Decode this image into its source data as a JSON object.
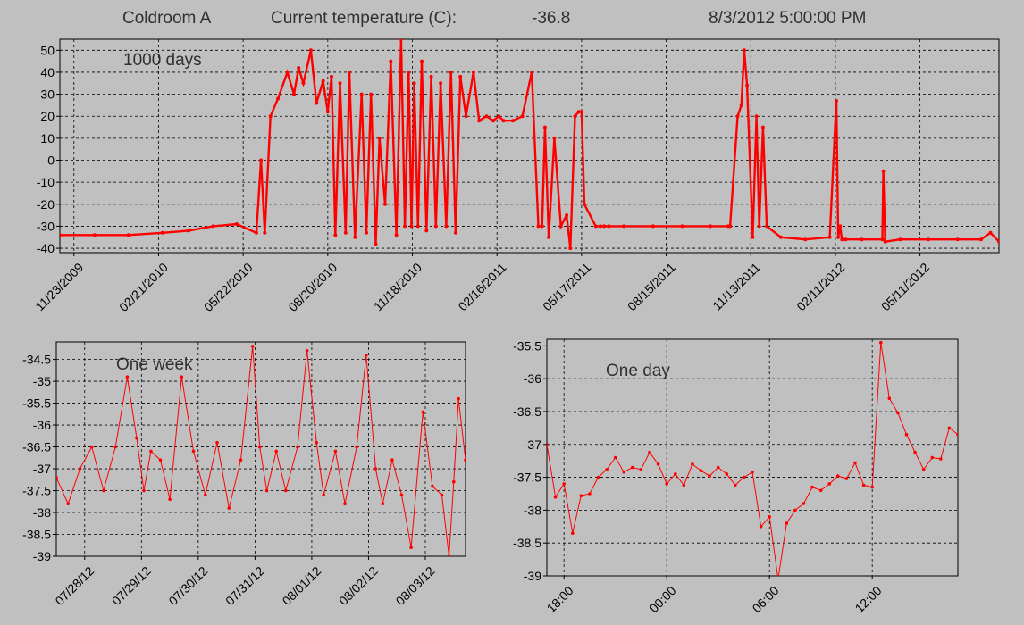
{
  "header": {
    "room": "Coldroom A",
    "current_label": "Current temperature (C):",
    "current_value": "-36.8",
    "timestamp": "8/3/2012 5:00:00 PM"
  },
  "colors": {
    "background": "#c0c0c0",
    "series": "#ff0000",
    "grid": "#000000"
  },
  "chart_data": [
    {
      "type": "line",
      "title": "1000 days",
      "xlabel": "",
      "ylabel": "",
      "x_axis_type": "date",
      "x_range": [
        "2009-11-08",
        "2012-08-03"
      ],
      "ylim": [
        -42,
        55
      ],
      "yticks": [
        -40,
        -30,
        -20,
        -10,
        0,
        10,
        20,
        30,
        40,
        50
      ],
      "xtick_labels": [
        "11/23/2009",
        "02/21/2010",
        "05/22/2010",
        "08/20/2010",
        "11/18/2010",
        "02/16/2011",
        "05/17/2011",
        "08/15/2011",
        "11/13/2011",
        "02/11/2012",
        "05/11/2012"
      ],
      "xtick_dates": [
        "2009-11-23",
        "2010-02-21",
        "2010-05-22",
        "2010-08-20",
        "2010-11-18",
        "2011-02-16",
        "2011-05-17",
        "2011-08-15",
        "2011-11-13",
        "2012-02-11",
        "2012-05-11"
      ],
      "grid": true,
      "series": [
        {
          "x": [
            "2009-11-08",
            "2009-12-15",
            "2010-01-20",
            "2010-02-25",
            "2010-03-25",
            "2010-04-20",
            "2010-05-15",
            "2010-06-05",
            "2010-06-10",
            "2010-06-14",
            "2010-06-20",
            "2010-06-28",
            "2010-07-08",
            "2010-07-15",
            "2010-07-20",
            "2010-07-25",
            "2010-08-02",
            "2010-08-08",
            "2010-08-15",
            "2010-08-20",
            "2010-08-24",
            "2010-08-28",
            "2010-09-02",
            "2010-09-08",
            "2010-09-12",
            "2010-09-18",
            "2010-09-25",
            "2010-09-30",
            "2010-10-05",
            "2010-10-10",
            "2010-10-14",
            "2010-10-20",
            "2010-10-26",
            "2010-11-01",
            "2010-11-06",
            "2010-11-10",
            "2010-11-14",
            "2010-11-17",
            "2010-11-20",
            "2010-11-24",
            "2010-11-28",
            "2010-12-03",
            "2010-12-08",
            "2010-12-13",
            "2010-12-18",
            "2010-12-24",
            "2010-12-29",
            "2011-01-03",
            "2011-01-08",
            "2011-01-14",
            "2011-01-22",
            "2011-01-28",
            "2011-02-05",
            "2011-02-12",
            "2011-02-18",
            "2011-02-23",
            "2011-03-05",
            "2011-03-15",
            "2011-03-25",
            "2011-04-01",
            "2011-04-05",
            "2011-04-08",
            "2011-04-12",
            "2011-04-18",
            "2011-04-25",
            "2011-05-01",
            "2011-05-05",
            "2011-05-10",
            "2011-05-14",
            "2011-05-17",
            "2011-05-20",
            "2011-06-01",
            "2011-06-06",
            "2011-06-10",
            "2011-06-15",
            "2011-07-01",
            "2011-08-01",
            "2011-09-01",
            "2011-10-01",
            "2011-10-20",
            "2011-10-22",
            "2011-10-30",
            "2011-11-03",
            "2011-11-06",
            "2011-11-09",
            "2011-11-15",
            "2011-11-19",
            "2011-11-22",
            "2011-11-26",
            "2011-11-30",
            "2011-12-15",
            "2012-01-10",
            "2012-02-05",
            "2012-02-12",
            "2012-02-14",
            "2012-02-16",
            "2012-02-18",
            "2012-02-22",
            "2012-03-10",
            "2012-04-01",
            "2012-04-02",
            "2012-04-04",
            "2012-04-20",
            "2012-05-20",
            "2012-06-20",
            "2012-07-15",
            "2012-07-25",
            "2012-08-03"
          ],
          "y": [
            -34,
            -34,
            -34,
            -33,
            -32,
            -30,
            -29,
            -33,
            0,
            -33,
            20,
            28,
            40,
            30,
            42,
            35,
            50,
            26,
            36,
            22,
            38,
            -34,
            35,
            -33,
            40,
            -35,
            30,
            -33,
            30,
            -38,
            10,
            -20,
            45,
            -34,
            55,
            -30,
            40,
            -30,
            35,
            -30,
            45,
            -32,
            38,
            -30,
            35,
            -30,
            40,
            -33,
            38,
            20,
            40,
            18,
            20,
            18,
            20,
            18,
            18,
            20,
            40,
            -30,
            -30,
            15,
            -35,
            10,
            -30,
            -25,
            -40,
            20,
            22,
            22,
            -20,
            -30,
            -30,
            -30,
            -30,
            -30,
            -30,
            -30,
            -30,
            -30,
            -30,
            20,
            25,
            50,
            34,
            -35,
            20,
            -30,
            15,
            -30,
            -35,
            -36,
            -35,
            27,
            -35,
            -30,
            -36,
            -36,
            -36,
            -36,
            -5,
            -37,
            -36,
            -36,
            -36,
            -36,
            -33,
            -37
          ]
        }
      ]
    },
    {
      "type": "line",
      "title": "One week",
      "xlabel": "",
      "ylabel": "",
      "x_axis_type": "date",
      "x_range": [
        "2012-07-27T12:00",
        "2012-08-03T17:00"
      ],
      "ylim": [
        -39,
        -34.1
      ],
      "yticks": [
        -39,
        -38.5,
        -38,
        -37.5,
        -37,
        -36.5,
        -36,
        -35.5,
        -35,
        -34.5
      ],
      "ytick_labels": [
        "-39",
        "-38.5",
        "-38",
        "-37.5",
        "-37",
        "-36.5",
        "-36",
        "-35.5",
        "-35",
        "-34.5"
      ],
      "xtick_labels": [
        "07/28/12",
        "07/29/12",
        "07/30/12",
        "07/31/12",
        "08/01/12",
        "08/02/12",
        "08/03/12"
      ],
      "xtick_dates": [
        "2012-07-28T00:00",
        "2012-07-29T00:00",
        "2012-07-30T00:00",
        "2012-07-31T00:00",
        "2012-08-01T00:00",
        "2012-08-02T00:00",
        "2012-08-03T00:00"
      ],
      "grid": true,
      "series": [
        {
          "x": [
            "2012-07-27T12:00",
            "2012-07-27T17:00",
            "2012-07-27T22:00",
            "2012-07-28T03:00",
            "2012-07-28T08:00",
            "2012-07-28T13:00",
            "2012-07-28T18:00",
            "2012-07-28T22:00",
            "2012-07-29T01:00",
            "2012-07-29T04:00",
            "2012-07-29T08:00",
            "2012-07-29T12:00",
            "2012-07-29T17:00",
            "2012-07-29T22:00",
            "2012-07-30T03:00",
            "2012-07-30T08:00",
            "2012-07-30T13:00",
            "2012-07-30T18:00",
            "2012-07-30T23:00",
            "2012-07-31T02:00",
            "2012-07-31T05:00",
            "2012-07-31T09:00",
            "2012-07-31T13:00",
            "2012-07-31T18:00",
            "2012-07-31T22:00",
            "2012-08-01T02:00",
            "2012-08-01T05:00",
            "2012-08-01T10:00",
            "2012-08-01T14:00",
            "2012-08-01T19:00",
            "2012-08-01T23:00",
            "2012-08-02T03:00",
            "2012-08-02T06:00",
            "2012-08-02T10:00",
            "2012-08-02T14:00",
            "2012-08-02T18:00",
            "2012-08-02T23:00",
            "2012-08-03T03:00",
            "2012-08-03T07:00",
            "2012-08-03T10:00",
            "2012-08-03T12:00",
            "2012-08-03T14:00",
            "2012-08-03T17:00"
          ],
          "y": [
            -37.2,
            -37.8,
            -37,
            -36.5,
            -37.5,
            -36.5,
            -34.9,
            -36.3,
            -37.5,
            -36.6,
            -36.8,
            -37.7,
            -34.9,
            -36.6,
            -37.6,
            -36.4,
            -37.9,
            -36.8,
            -34.2,
            -36.5,
            -37.5,
            -36.6,
            -37.5,
            -36.5,
            -34.3,
            -36.4,
            -37.6,
            -36.6,
            -37.8,
            -36.5,
            -34.4,
            -37,
            -37.8,
            -36.8,
            -37.6,
            -38.8,
            -35.7,
            -37.4,
            -37.6,
            -39,
            -37.3,
            -35.4,
            -36.8
          ]
        }
      ]
    },
    {
      "type": "line",
      "title": "One day",
      "xlabel": "",
      "ylabel": "",
      "x_axis_type": "time",
      "x_range": [
        "2012-08-02T17:00",
        "2012-08-03T17:00"
      ],
      "ylim": [
        -39,
        -35.4
      ],
      "yticks": [
        -39,
        -38.5,
        -38,
        -37.5,
        -37,
        -36.5,
        -36,
        -35.5
      ],
      "ytick_labels": [
        "-39",
        "-38.5",
        "-38",
        "-37.5",
        "-37",
        "-36.5",
        "-36",
        "-35.5"
      ],
      "xtick_labels": [
        "18:00",
        "00:00",
        "06:00",
        "12:00"
      ],
      "xtick_dates": [
        "2012-08-02T18:00",
        "2012-08-03T00:00",
        "2012-08-03T06:00",
        "2012-08-03T12:00"
      ],
      "grid": true,
      "series": [
        {
          "x": [
            "2012-08-02T17:00",
            "2012-08-02T17:30",
            "2012-08-02T18:00",
            "2012-08-02T18:30",
            "2012-08-02T19:00",
            "2012-08-02T19:30",
            "2012-08-02T20:00",
            "2012-08-02T20:30",
            "2012-08-02T21:00",
            "2012-08-02T21:30",
            "2012-08-02T22:00",
            "2012-08-02T22:30",
            "2012-08-02T23:00",
            "2012-08-02T23:30",
            "2012-08-03T00:00",
            "2012-08-03T00:30",
            "2012-08-03T01:00",
            "2012-08-03T01:30",
            "2012-08-03T02:00",
            "2012-08-03T02:30",
            "2012-08-03T03:00",
            "2012-08-03T03:30",
            "2012-08-03T04:00",
            "2012-08-03T04:30",
            "2012-08-03T05:00",
            "2012-08-03T05:30",
            "2012-08-03T06:00",
            "2012-08-03T06:30",
            "2012-08-03T07:00",
            "2012-08-03T07:30",
            "2012-08-03T08:00",
            "2012-08-03T08:30",
            "2012-08-03T09:00",
            "2012-08-03T09:30",
            "2012-08-03T10:00",
            "2012-08-03T10:30",
            "2012-08-03T11:00",
            "2012-08-03T11:30",
            "2012-08-03T12:00",
            "2012-08-03T12:30",
            "2012-08-03T13:00",
            "2012-08-03T13:30",
            "2012-08-03T14:00",
            "2012-08-03T14:30",
            "2012-08-03T15:00",
            "2012-08-03T15:30",
            "2012-08-03T16:00",
            "2012-08-03T16:30",
            "2012-08-03T17:00"
          ],
          "y": [
            -37,
            -37.8,
            -37.6,
            -38.35,
            -37.78,
            -37.75,
            -37.5,
            -37.38,
            -37.2,
            -37.42,
            -37.35,
            -37.38,
            -37.12,
            -37.3,
            -37.6,
            -37.45,
            -37.62,
            -37.3,
            -37.4,
            -37.48,
            -37.35,
            -37.45,
            -37.62,
            -37.5,
            -37.42,
            -38.25,
            -38.1,
            -39.05,
            -38.2,
            -38,
            -37.9,
            -37.65,
            -37.7,
            -37.6,
            -37.48,
            -37.52,
            -37.28,
            -37.62,
            -37.65,
            -35.45,
            -36.3,
            -36.52,
            -36.85,
            -37.12,
            -37.38,
            -37.2,
            -37.22,
            -36.75,
            -36.85
          ]
        }
      ]
    }
  ]
}
